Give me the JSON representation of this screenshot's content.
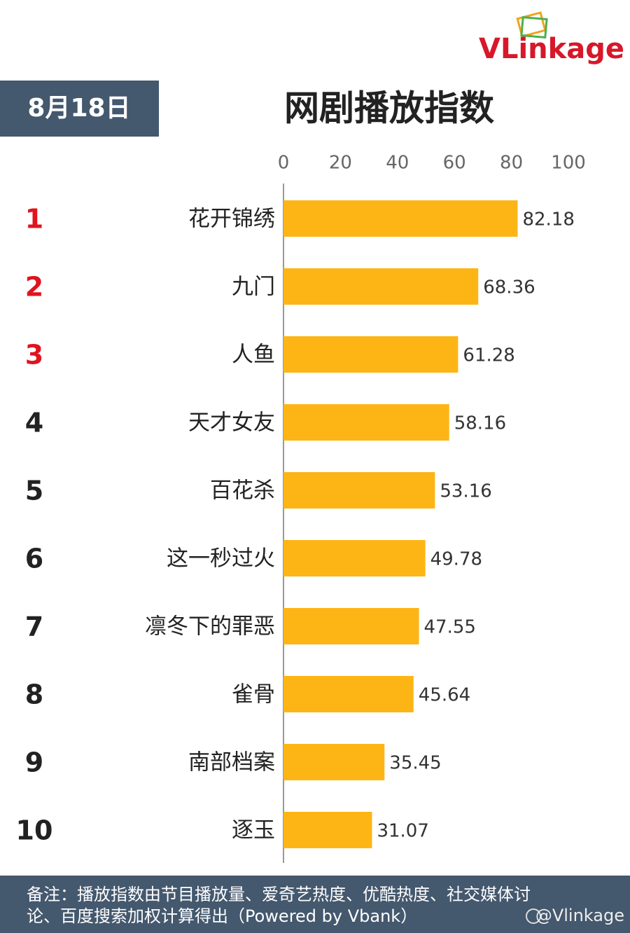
{
  "chart_data": {
    "type": "bar",
    "orientation": "horizontal",
    "title": "网剧播放指数",
    "date": "8月18日",
    "logo": "VLinkage",
    "watermark": "@Vlinkage",
    "ranks": [
      1,
      2,
      3,
      4,
      5,
      6,
      7,
      8,
      9,
      10
    ],
    "rank_colors": [
      "#e0141e",
      "#e0141e",
      "#e0141e",
      "#222222",
      "#222222",
      "#222222",
      "#222222",
      "#222222",
      "#222222",
      "#222222"
    ],
    "categories": [
      "花开锦绣",
      "九门",
      "人鱼",
      "天才女友",
      "百花杀",
      "这一秒过火",
      "凛冬下的罪恶",
      "雀骨",
      "南部档案",
      "逐玉"
    ],
    "values": [
      82.18,
      68.36,
      61.28,
      58.16,
      53.16,
      49.78,
      47.55,
      45.64,
      35.45,
      31.07
    ],
    "color": "#fdb515",
    "xlim": [
      0,
      100
    ],
    "xticks": [
      0,
      20,
      40,
      60,
      80,
      100
    ],
    "note": [
      "备注：播放指数由节目播放量、爱奇艺热度、优酷热度、社交媒体讨",
      "论、百度搜索加权计算得出（Powered by Vbank）"
    ]
  }
}
